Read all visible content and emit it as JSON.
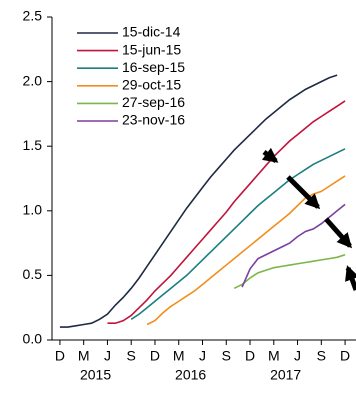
{
  "chart_data": {
    "type": "line",
    "xlim": [
      -1,
      37
    ],
    "xticks": [
      {
        "value": 0,
        "label": "D"
      },
      {
        "value": 3,
        "label": "M"
      },
      {
        "value": 6,
        "label": "J"
      },
      {
        "value": 9,
        "label": "S"
      },
      {
        "value": 12,
        "label": "D"
      },
      {
        "value": 15,
        "label": "M"
      },
      {
        "value": 18,
        "label": "J"
      },
      {
        "value": 21,
        "label": "S"
      },
      {
        "value": 24,
        "label": "D"
      },
      {
        "value": 27,
        "label": "M"
      },
      {
        "value": 30,
        "label": "J"
      },
      {
        "value": 33,
        "label": "S"
      },
      {
        "value": 36,
        "label": "D"
      }
    ],
    "x_group_labels": [
      "2015",
      "2016",
      "2017"
    ],
    "ylim": [
      0,
      2.5
    ],
    "yticks": [
      {
        "value": 0,
        "label": "0.0"
      },
      0.5,
      {
        "value": 1,
        "label": "1.0"
      },
      1.5,
      {
        "value": 2,
        "label": "2.0"
      },
      2.5
    ],
    "grid": false,
    "legend": "top-left",
    "series": [
      {
        "name": "15-dic-14",
        "color": "#1f2a44",
        "x": [
          0,
          1,
          2,
          3,
          4,
          5,
          6,
          7,
          8,
          9,
          10,
          11,
          12,
          13,
          14,
          15,
          16,
          17,
          18,
          19,
          20,
          21,
          22,
          23,
          24,
          25,
          26,
          27,
          28,
          29,
          30,
          31,
          32,
          33,
          34,
          35
        ],
        "values": [
          0.1,
          0.1,
          0.11,
          0.12,
          0.13,
          0.16,
          0.2,
          0.27,
          0.33,
          0.4,
          0.48,
          0.57,
          0.66,
          0.75,
          0.84,
          0.93,
          1.02,
          1.1,
          1.18,
          1.26,
          1.33,
          1.4,
          1.47,
          1.53,
          1.59,
          1.65,
          1.71,
          1.76,
          1.81,
          1.86,
          1.9,
          1.94,
          1.97,
          2.0,
          2.03,
          2.05
        ]
      },
      {
        "name": "15-jun-15",
        "color": "#c0143c",
        "x": [
          6,
          7,
          8,
          9,
          10,
          11,
          12,
          13,
          14,
          15,
          16,
          17,
          18,
          19,
          20,
          21,
          22,
          23,
          24,
          25,
          26,
          27,
          28,
          29,
          30,
          31,
          32,
          33,
          34,
          35,
          36
        ],
        "values": [
          0.13,
          0.13,
          0.15,
          0.19,
          0.25,
          0.31,
          0.38,
          0.44,
          0.5,
          0.57,
          0.64,
          0.71,
          0.78,
          0.85,
          0.92,
          0.99,
          1.07,
          1.14,
          1.21,
          1.28,
          1.35,
          1.42,
          1.48,
          1.54,
          1.59,
          1.64,
          1.69,
          1.73,
          1.77,
          1.81,
          1.85
        ]
      },
      {
        "name": "16-sep-15",
        "color": "#1a7f80",
        "x": [
          9,
          10,
          11,
          12,
          13,
          14,
          15,
          16,
          17,
          18,
          19,
          20,
          21,
          22,
          23,
          24,
          25,
          26,
          27,
          28,
          29,
          30,
          31,
          32,
          33,
          34,
          35,
          36
        ],
        "values": [
          0.16,
          0.2,
          0.25,
          0.3,
          0.35,
          0.4,
          0.45,
          0.5,
          0.56,
          0.62,
          0.68,
          0.74,
          0.8,
          0.86,
          0.92,
          0.98,
          1.04,
          1.09,
          1.14,
          1.19,
          1.24,
          1.28,
          1.32,
          1.36,
          1.39,
          1.42,
          1.45,
          1.48
        ]
      },
      {
        "name": "29-oct-15",
        "color": "#f28e1c",
        "x": [
          11,
          12,
          13,
          14,
          15,
          16,
          17,
          18,
          19,
          20,
          21,
          22,
          23,
          24,
          25,
          26,
          27,
          28,
          29,
          30,
          31,
          32,
          33,
          34,
          35,
          36
        ],
        "values": [
          0.12,
          0.15,
          0.21,
          0.26,
          0.3,
          0.34,
          0.38,
          0.43,
          0.48,
          0.53,
          0.58,
          0.63,
          0.68,
          0.73,
          0.78,
          0.83,
          0.88,
          0.93,
          0.98,
          1.04,
          1.1,
          1.13,
          1.15,
          1.19,
          1.23,
          1.27
        ]
      },
      {
        "name": "27-sep-16",
        "color": "#7ab648",
        "x": [
          22,
          23,
          24,
          25,
          26,
          27,
          28,
          29,
          30,
          31,
          32,
          33,
          34,
          35,
          36
        ],
        "values": [
          0.4,
          0.43,
          0.48,
          0.52,
          0.54,
          0.56,
          0.57,
          0.58,
          0.59,
          0.6,
          0.61,
          0.62,
          0.63,
          0.64,
          0.66
        ]
      },
      {
        "name": "23-nov-16",
        "color": "#7b3fa0",
        "x": [
          23,
          24,
          25,
          26,
          27,
          28,
          29,
          30,
          31,
          32,
          33,
          34,
          35,
          36
        ],
        "values": [
          0.41,
          0.55,
          0.63,
          0.66,
          0.69,
          0.72,
          0.75,
          0.8,
          0.84,
          0.86,
          0.9,
          0.95,
          1.0,
          1.05
        ]
      }
    ]
  }
}
